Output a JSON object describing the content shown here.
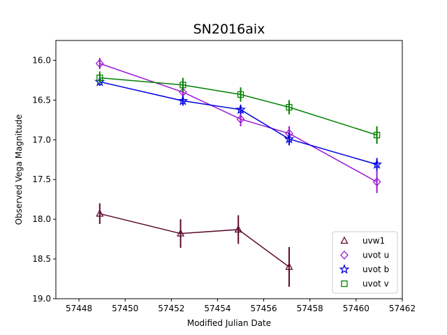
{
  "chart_data": {
    "type": "scatter",
    "title": "SN2016aix",
    "xlabel": "Modified Julian Date",
    "ylabel": "Observed Vega Magnitude",
    "xlim": [
      57447,
      57462
    ],
    "ylim": [
      15.75,
      19.0
    ],
    "y_inverted": true,
    "xticks": [
      57448,
      57450,
      57452,
      57454,
      57456,
      57458,
      57460,
      57462
    ],
    "yticks": [
      16.0,
      16.5,
      17.0,
      17.5,
      18.0,
      18.5,
      19.0
    ],
    "xtick_labels": [
      "57448",
      "57450",
      "57452",
      "57454",
      "57456",
      "57458",
      "57460",
      "57462"
    ],
    "ytick_labels": [
      "16.0",
      "16.5",
      "17.0",
      "17.5",
      "18.0",
      "18.5",
      "19.0"
    ],
    "legend_position": "lower-right",
    "series": [
      {
        "name": "uvw1",
        "color": "#5c0b2d",
        "marker": "triangle",
        "x": [
          57448.9,
          57452.4,
          57454.9,
          57457.1
        ],
        "y": [
          17.93,
          18.18,
          18.13,
          18.6
        ],
        "yerr": [
          0.13,
          0.18,
          0.18,
          0.25
        ]
      },
      {
        "name": "uvot u",
        "color": "#9a1ad0",
        "marker": "diamond",
        "x": [
          57448.9,
          57452.5,
          57455.0,
          57457.1,
          57460.9
        ],
        "y": [
          16.04,
          16.4,
          16.74,
          16.92,
          17.53
        ],
        "yerr": [
          0.07,
          0.08,
          0.09,
          0.09,
          0.14
        ]
      },
      {
        "name": "uvot b",
        "color": "#0000e0",
        "marker": "star",
        "x": [
          57448.9,
          57452.5,
          57455.0,
          57457.1,
          57460.9
        ],
        "y": [
          16.27,
          16.51,
          16.62,
          16.99,
          17.31
        ],
        "yerr": [
          0.05,
          0.06,
          0.06,
          0.08,
          0.08
        ]
      },
      {
        "name": "uvot v",
        "color": "#008000",
        "marker": "square",
        "x": [
          57448.9,
          57452.5,
          57455.0,
          57457.1,
          57460.9
        ],
        "y": [
          16.22,
          16.31,
          16.43,
          16.59,
          16.94
        ],
        "yerr": [
          0.08,
          0.09,
          0.09,
          0.09,
          0.11
        ]
      }
    ]
  }
}
